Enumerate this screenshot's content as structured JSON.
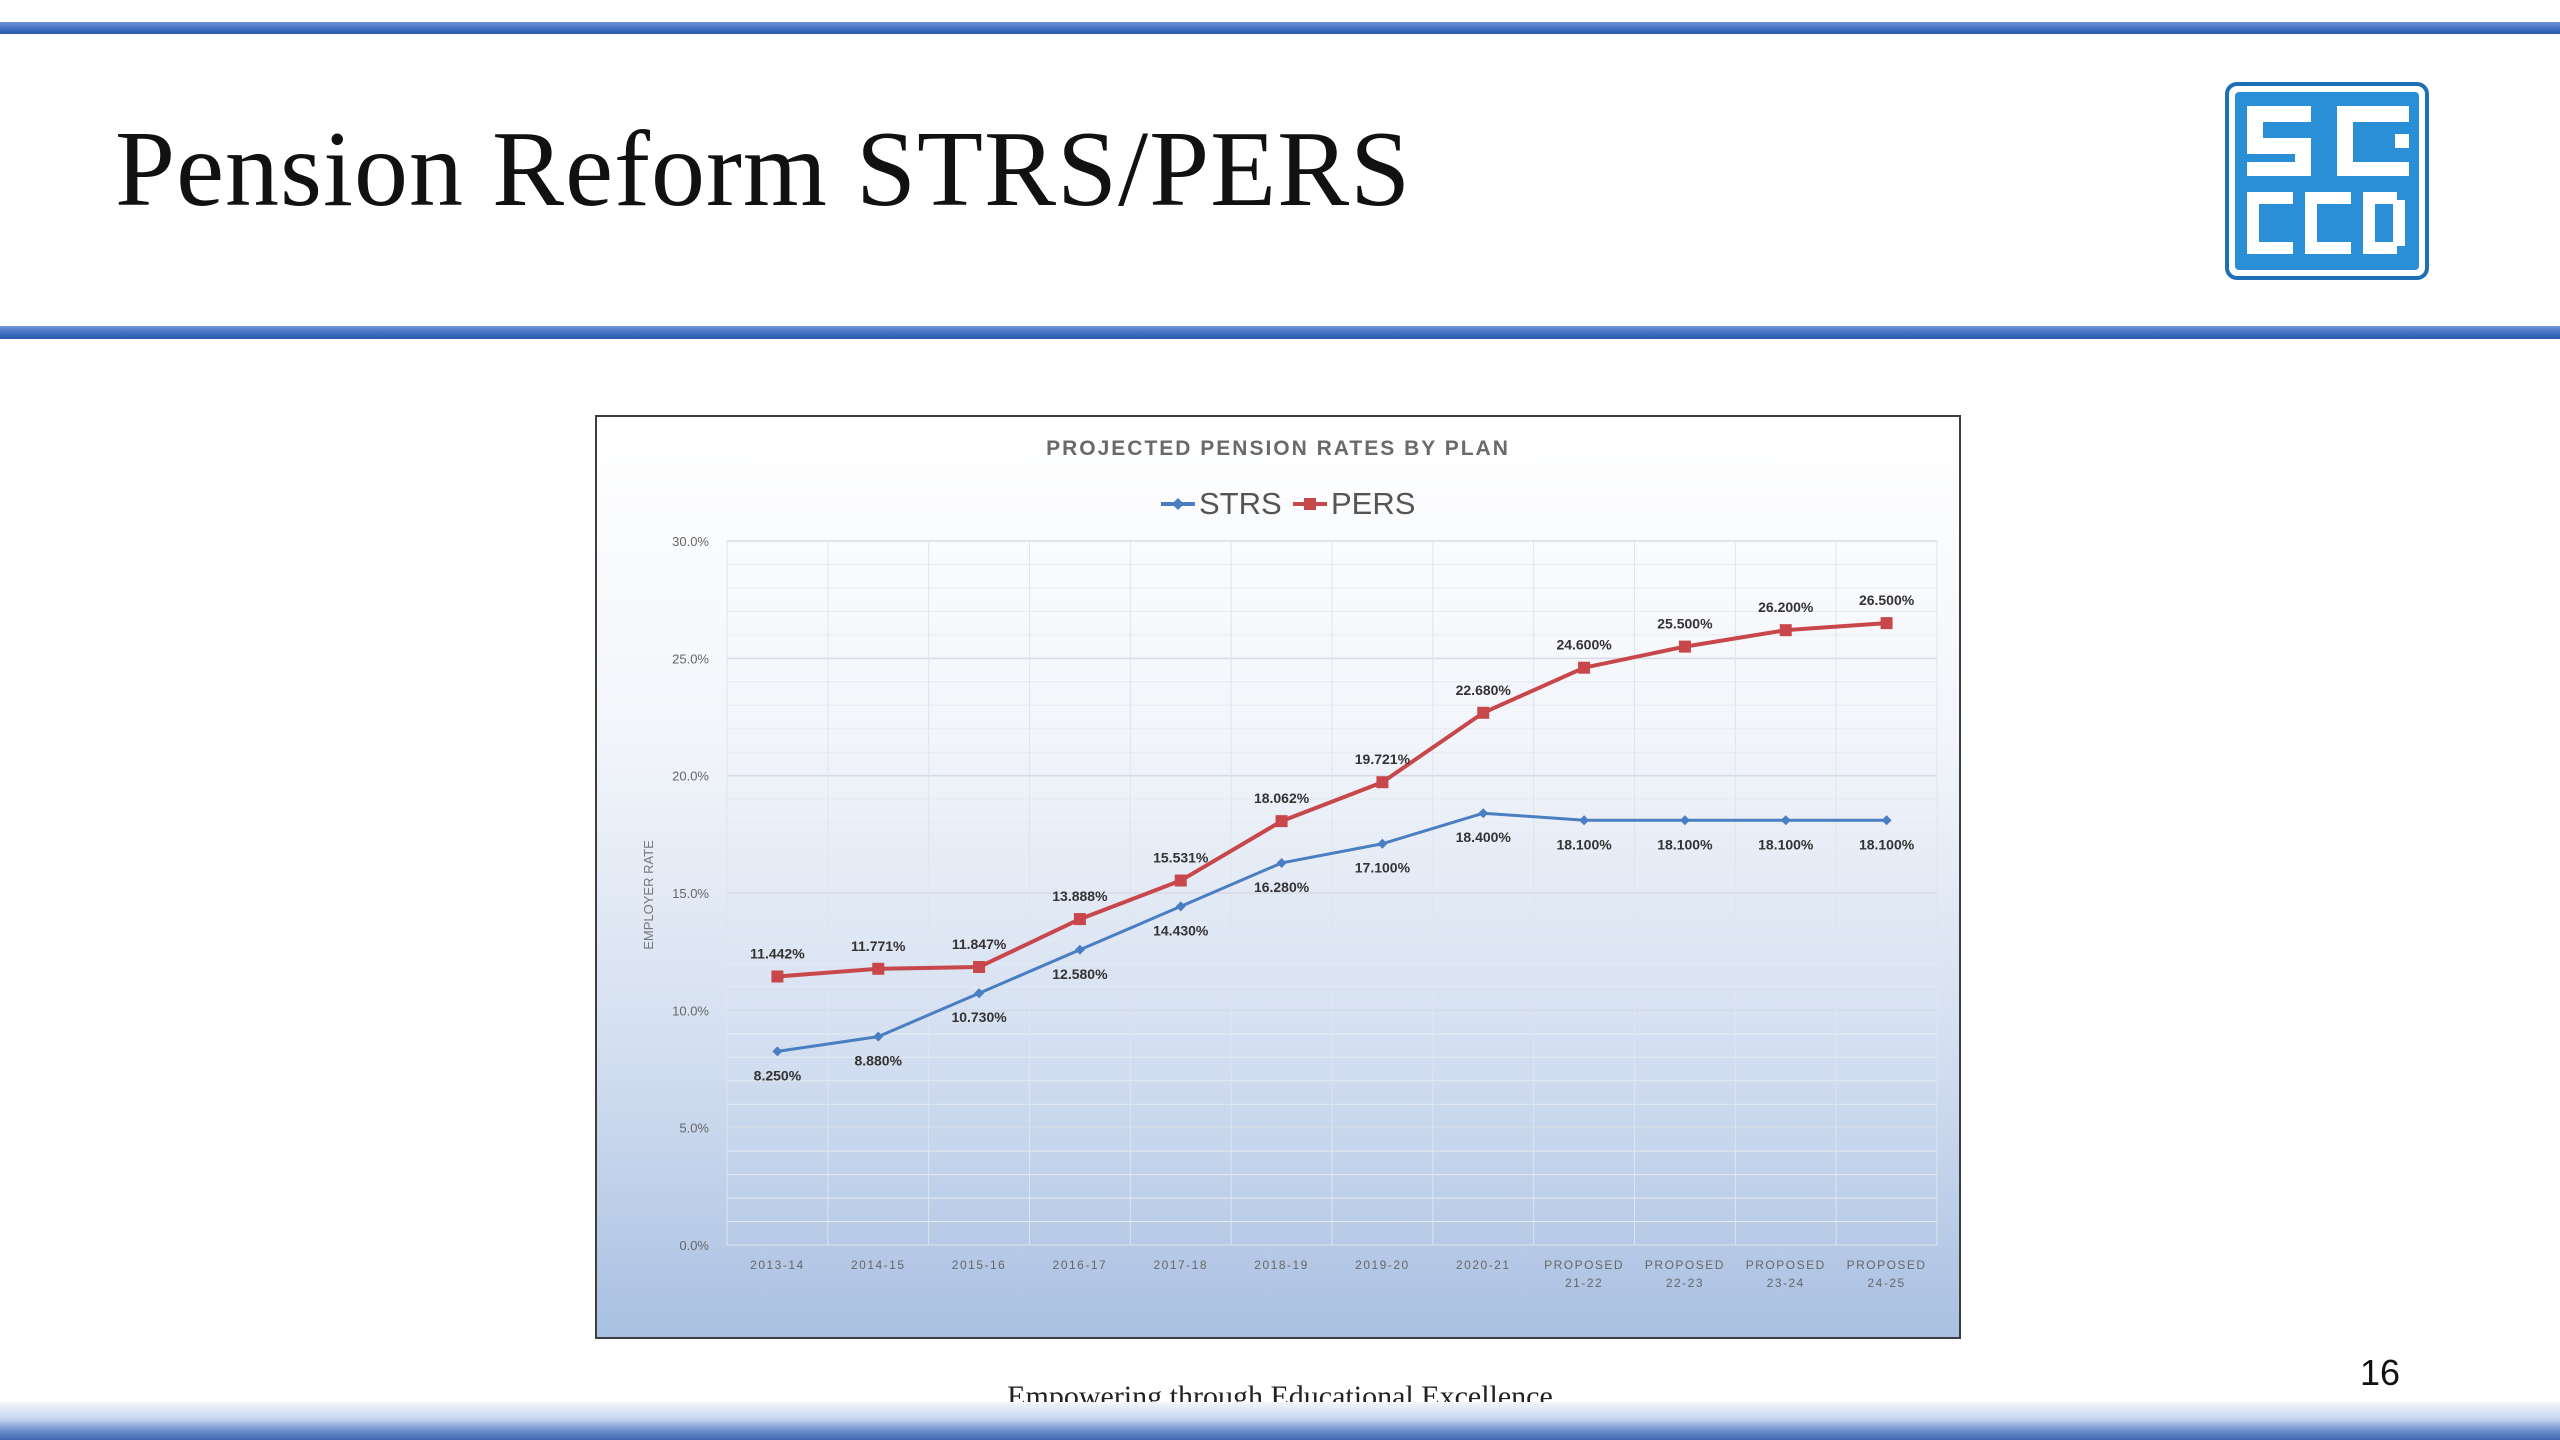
{
  "slide": {
    "title": "Pension Reform STRS/PERS",
    "footer": "Empowering through Educational Excellence",
    "page_number": "16",
    "logo_text": "SCCCD",
    "colors": {
      "accent_rule": "#3d6cc0",
      "logo_blue": "#2a8fd6"
    }
  },
  "chart_data": {
    "type": "line",
    "title": "PROJECTED PENSION RATES BY PLAN",
    "ylabel": "EMPLOYER RATE",
    "xlabel": "",
    "ylim": [
      0,
      30
    ],
    "yticks": [
      "0.0%",
      "5.0%",
      "10.0%",
      "15.0%",
      "20.0%",
      "25.0%",
      "30.0%"
    ],
    "categories": [
      "2013-14",
      "2014-15",
      "2015-16",
      "2016-17",
      "2017-18",
      "2018-19",
      "2019-20",
      "2020-21",
      "PROPOSED 21-22",
      "PROPOSED 22-23",
      "PROPOSED 23-24",
      "PROPOSED 24-25"
    ],
    "legend_position": "top-center",
    "grid": true,
    "series": [
      {
        "name": "STRS",
        "color": "#4a7ec2",
        "marker": "diamond",
        "values": [
          8.25,
          8.88,
          10.73,
          12.58,
          14.43,
          16.28,
          17.1,
          18.4,
          18.1,
          18.1,
          18.1,
          18.1
        ],
        "labels": [
          "8.250%",
          "8.880%",
          "10.730%",
          "12.580%",
          "14.430%",
          "16.280%",
          "17.100%",
          "18.400%",
          "18.100%",
          "18.100%",
          "18.100%",
          "18.100%"
        ]
      },
      {
        "name": "PERS",
        "color": "#c8474b",
        "marker": "square",
        "values": [
          11.442,
          11.771,
          11.847,
          13.888,
          15.531,
          18.062,
          19.721,
          22.68,
          24.6,
          25.5,
          26.2,
          26.5
        ],
        "labels": [
          "11.442%",
          "11.771%",
          "11.847%",
          "13.888%",
          "15.531%",
          "18.062%",
          "19.721%",
          "22.680%",
          "24.600%",
          "25.500%",
          "26.200%",
          "26.500%"
        ]
      }
    ]
  }
}
